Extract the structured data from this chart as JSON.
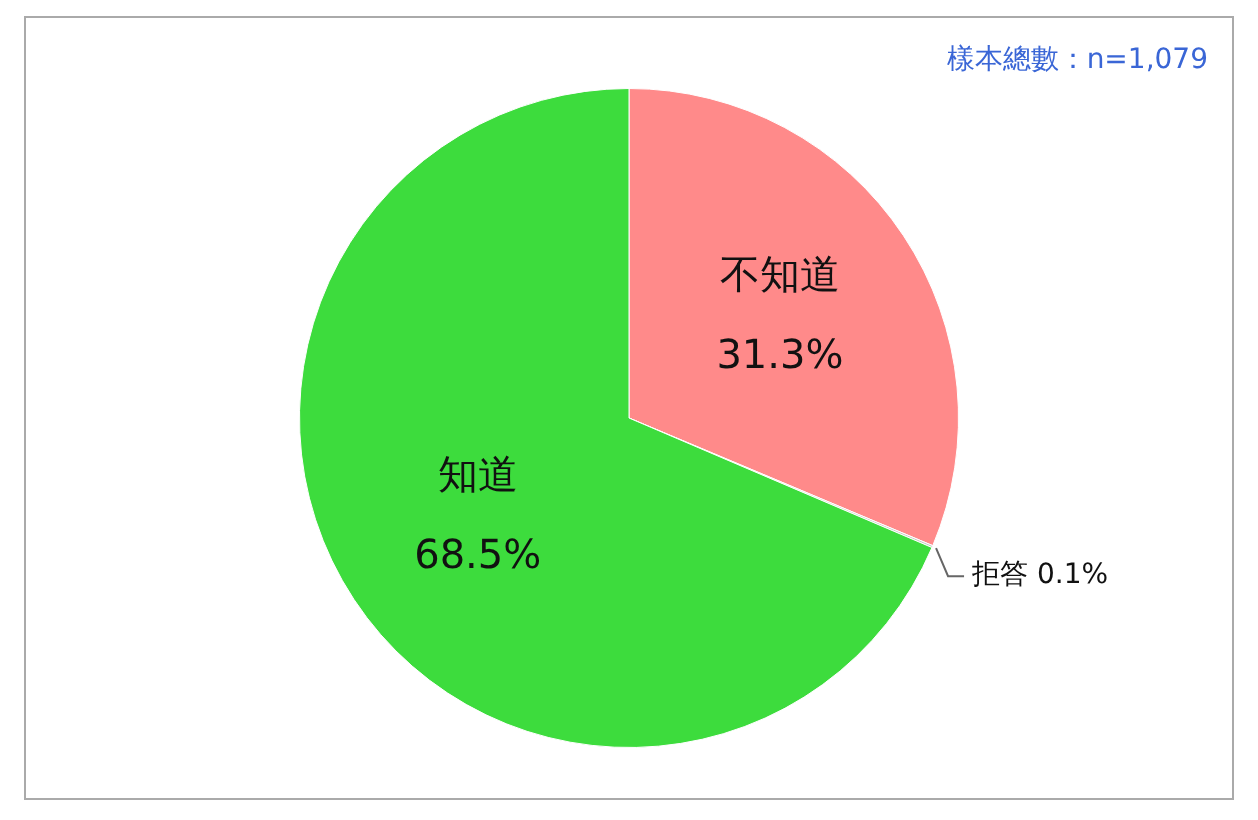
{
  "chart_data": {
    "type": "pie",
    "categories": [
      "不知道",
      "拒答",
      "知道"
    ],
    "values": [
      31.3,
      0.1,
      68.5
    ],
    "colors": [
      "#ff8a8a",
      "#c8c8c8",
      "#3ddc3d"
    ],
    "value_labels": [
      "31.3%",
      "0.1%",
      "68.5%"
    ],
    "annotations": [
      "樣本總數：n=1,079"
    ],
    "legend": false
  }
}
